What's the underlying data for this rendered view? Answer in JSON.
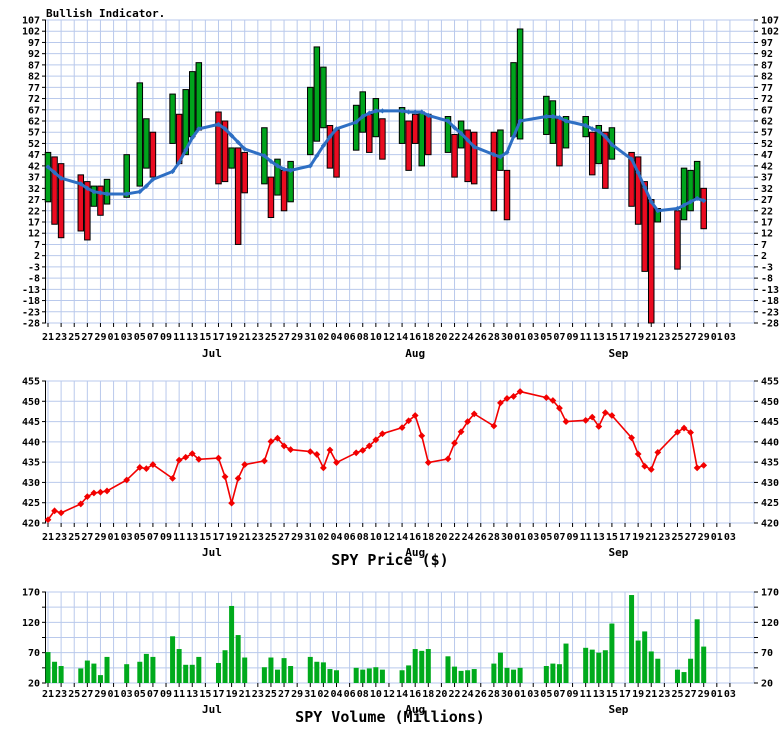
{
  "colors": {
    "grid": "#b9c9ec",
    "axis": "#000000",
    "indicator_up": "#00a41c",
    "indicator_down": "#ea0b20",
    "indicator_line": "#2e6fc4",
    "price_line": "#f20000",
    "volume_bar": "#00aa1c",
    "background": "#ffffff"
  },
  "x_axis": {
    "tick_labels": [
      "21",
      "23",
      "25",
      "27",
      "29",
      "01",
      "03",
      "05",
      "07",
      "09",
      "11",
      "13",
      "15",
      "17",
      "19",
      "21",
      "23",
      "25",
      "27",
      "29",
      "31",
      "02",
      "04",
      "06",
      "08",
      "10",
      "12",
      "14",
      "16",
      "18",
      "20",
      "22",
      "24",
      "26",
      "28",
      "30",
      "01",
      "03",
      "05",
      "07",
      "09",
      "11",
      "13",
      "15",
      "17",
      "19",
      "21",
      "23",
      "25",
      "27",
      "29",
      "01",
      "03"
    ],
    "months": [
      {
        "d": 25,
        "label": "Jul"
      },
      {
        "d": 56,
        "label": "Aug"
      },
      {
        "d": 87,
        "label": "Sep"
      }
    ],
    "days": [
      0,
      1,
      2,
      5,
      6,
      7,
      8,
      9,
      12,
      14,
      15,
      16,
      19,
      20,
      21,
      22,
      23,
      26,
      27,
      28,
      29,
      30,
      33,
      34,
      35,
      36,
      37,
      40,
      41,
      42,
      43,
      44,
      47,
      48,
      49,
      50,
      51,
      54,
      55,
      56,
      57,
      58,
      61,
      62,
      63,
      64,
      65,
      68,
      69,
      70,
      71,
      72,
      76,
      77,
      78,
      79,
      82,
      83,
      84,
      85,
      86,
      89,
      90,
      91,
      92,
      93,
      96,
      97,
      98,
      99,
      100
    ]
  },
  "chart_data": [
    {
      "type": "bar",
      "title": "Bullish Indicator.",
      "ylim": [
        -28,
        107
      ],
      "ytick": 5,
      "grid": true,
      "bars_lo": [
        26,
        16,
        10,
        13,
        9,
        24,
        20,
        25,
        28,
        33,
        41,
        37,
        52,
        43,
        47,
        55,
        58,
        34,
        35,
        41,
        7,
        30,
        34,
        19,
        29,
        22,
        26,
        47,
        53,
        59,
        41,
        37,
        49,
        57,
        48,
        55,
        45,
        52,
        40,
        52,
        42,
        47,
        48,
        37,
        50,
        35,
        34,
        22,
        40,
        18,
        55,
        54,
        56,
        52,
        42,
        50,
        55,
        38,
        43,
        32,
        45,
        24,
        16,
        -5,
        -28,
        17,
        -4,
        18,
        22,
        27,
        14
      ],
      "bars_hi": [
        48,
        46,
        43,
        38,
        35,
        33,
        33,
        36,
        47,
        79,
        63,
        57,
        74,
        65,
        76,
        84,
        88,
        66,
        62,
        50,
        50,
        48,
        59,
        37,
        45,
        40,
        44,
        77,
        95,
        86,
        60,
        58,
        69,
        75,
        65,
        72,
        63,
        68,
        62,
        65,
        66,
        65,
        64,
        56,
        62,
        58,
        57,
        57,
        58,
        40,
        88,
        103,
        73,
        71,
        63,
        64,
        64,
        57,
        60,
        57,
        59,
        48,
        46,
        35,
        27,
        23,
        22,
        41,
        40,
        44,
        32
      ],
      "bars_dir": [
        "g",
        "r",
        "r",
        "r",
        "r",
        "g",
        "r",
        "g",
        "g",
        "g",
        "g",
        "r",
        "g",
        "r",
        "g",
        "g",
        "g",
        "r",
        "r",
        "g",
        "r",
        "r",
        "g",
        "r",
        "g",
        "r",
        "g",
        "g",
        "g",
        "g",
        "r",
        "r",
        "g",
        "g",
        "r",
        "g",
        "r",
        "g",
        "r",
        "r",
        "g",
        "r",
        "g",
        "r",
        "g",
        "r",
        "r",
        "r",
        "g",
        "r",
        "g",
        "g",
        "g",
        "g",
        "r",
        "g",
        "g",
        "r",
        "g",
        "r",
        "g",
        "r",
        "r",
        "r",
        "r",
        "g",
        "r",
        "g",
        "g",
        "g",
        "r"
      ],
      "line": [
        41.5,
        39,
        36.5,
        34,
        32,
        30.5,
        30,
        29.5,
        29.5,
        30.5,
        33,
        36,
        39.5,
        43.5,
        49,
        54.5,
        58.5,
        60.5,
        58.5,
        55.5,
        52.5,
        49.5,
        46.5,
        44,
        42,
        40.5,
        40,
        42,
        46.5,
        51,
        55,
        58.5,
        61.5,
        64,
        65.5,
        66.5,
        66.5,
        66.5,
        66,
        66,
        66,
        64.5,
        62,
        59,
        56.5,
        53.5,
        50.5,
        47,
        46,
        48,
        55,
        62,
        64,
        64,
        63.5,
        62,
        60,
        58.5,
        57.5,
        55,
        51.5,
        45,
        39,
        32.5,
        26,
        22,
        23,
        24.5,
        26,
        27.5,
        26.5
      ]
    },
    {
      "type": "line",
      "xlabel": "SPY Price ($)",
      "ylim": [
        420,
        455
      ],
      "ytick": 5,
      "grid": true,
      "marker": "diamond",
      "values": [
        420.8,
        423.0,
        422.5,
        424.7,
        426.5,
        427.4,
        427.6,
        427.9,
        430.6,
        433.7,
        433.4,
        434.4,
        431.0,
        435.5,
        436.2,
        437.1,
        435.7,
        436.0,
        431.4,
        424.9,
        431.0,
        434.4,
        435.3,
        440.1,
        440.9,
        439.0,
        438.1,
        437.6,
        436.9,
        433.6,
        438.0,
        434.9,
        437.3,
        437.9,
        439.0,
        440.5,
        442.0,
        443.5,
        445.2,
        446.5,
        441.5,
        434.9,
        435.8,
        439.7,
        442.5,
        445.0,
        446.9,
        443.9,
        449.6,
        450.7,
        451.2,
        452.4,
        450.9,
        450.2,
        448.3,
        445.0,
        445.3,
        446.1,
        443.8,
        447.2,
        446.5,
        441.0,
        437.0,
        434.0,
        433.2,
        437.4,
        442.4,
        443.4,
        442.3,
        433.6,
        434.2
      ]
    },
    {
      "type": "bar",
      "xlabel": "SPY Volume (Millions)",
      "ylim": [
        20,
        170
      ],
      "ytick": 25,
      "label_every": 50,
      "grid": true,
      "values": [
        71,
        55,
        48,
        44,
        57,
        52,
        33,
        63,
        51,
        55,
        68,
        63,
        97,
        76,
        50,
        50,
        63,
        53,
        74,
        147,
        99,
        62,
        46,
        62,
        42,
        61,
        48,
        63,
        55,
        54,
        43,
        41,
        45,
        42,
        44,
        46,
        42,
        41,
        49,
        76,
        73,
        76,
        64,
        47,
        40,
        41,
        43,
        52,
        70,
        45,
        42,
        45,
        48,
        52,
        51,
        85,
        78,
        75,
        70,
        74,
        118,
        165,
        90,
        105,
        72,
        60,
        42,
        38,
        60,
        125,
        80
      ]
    }
  ]
}
